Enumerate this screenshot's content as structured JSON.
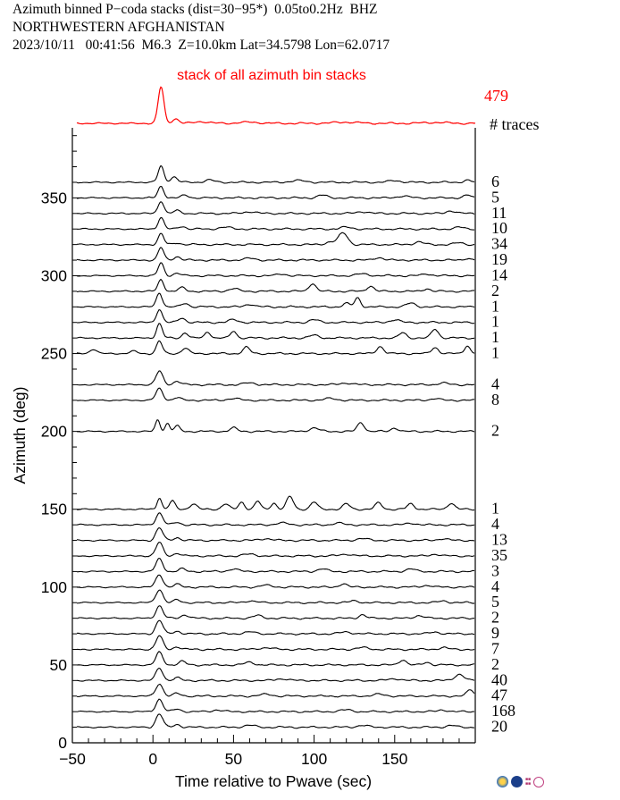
{
  "header": {
    "line1": "Azimuth binned P−coda stacks (dist=30−95*)  0.05to0.2Hz  BHZ",
    "line2": "NORTHWESTERN AFGHANISTAN",
    "line3": "2023/10/11   00:41:56  M6.3  Z=10.0km Lat=34.5798 Lon=62.0717"
  },
  "colors": {
    "stack": "#ff0000",
    "trace": "#000000",
    "axis": "#000000"
  },
  "chart_data": {
    "type": "line",
    "title": "Azimuth binned P−coda stacks (dist=30−95*)  0.05to0.2Hz  BHZ",
    "xlabel": "Time relative to Pwave (sec)",
    "ylabel": "Azimuth (deg)",
    "xlim": [
      -50,
      200
    ],
    "ylim": [
      0,
      395
    ],
    "xticks": [
      -50,
      0,
      50,
      100,
      150
    ],
    "xtick_labels": [
      "−50",
      "0",
      "50",
      "100",
      "150"
    ],
    "yticks": [
      0,
      50,
      100,
      150,
      200,
      250,
      300,
      350
    ],
    "yminor_step": 10,
    "xminor_step": 10,
    "grid": false,
    "stack": {
      "label": "stack of all azimuth bin stacks",
      "count_label": "479",
      "count_header": "# traces",
      "wiggles": [
        [
          5,
          12,
          2.5
        ],
        [
          14,
          1.5,
          3
        ],
        [
          30,
          0.6,
          6
        ],
        [
          60,
          0.4,
          8
        ],
        [
          120,
          0.4,
          10
        ],
        [
          175,
          0.3,
          10
        ]
      ]
    },
    "traces": [
      {
        "azimuth": 360,
        "count": "6",
        "wiggles": [
          [
            5,
            18,
            2.5
          ],
          [
            13,
            6,
            3
          ],
          [
            35,
            2.5,
            4
          ],
          [
            90,
            2,
            6
          ],
          [
            150,
            2,
            5
          ],
          [
            195,
            2.5,
            3
          ]
        ]
      },
      {
        "azimuth": 350,
        "count": "5",
        "wiggles": [
          [
            5,
            13,
            2.5
          ],
          [
            20,
            3,
            3
          ],
          [
            105,
            3,
            4
          ],
          [
            155,
            2,
            5
          ],
          [
            195,
            3,
            3
          ]
        ]
      },
      {
        "azimuth": 340,
        "count": "11",
        "wiggles": [
          [
            5,
            14,
            2.5
          ],
          [
            15,
            3,
            3
          ],
          [
            60,
            2,
            5
          ],
          [
            130,
            2,
            5
          ],
          [
            185,
            3,
            4
          ]
        ]
      },
      {
        "azimuth": 330,
        "count": "10",
        "wiggles": [
          [
            5,
            13,
            2.5
          ],
          [
            18,
            3,
            3
          ],
          [
            45,
            2,
            5
          ],
          [
            120,
            2,
            5
          ],
          [
            190,
            2,
            4
          ]
        ]
      },
      {
        "azimuth": 320,
        "count": "34",
        "wiggles": [
          [
            5,
            12,
            2.5
          ],
          [
            15,
            2,
            3
          ],
          [
            110,
            3,
            4
          ],
          [
            118,
            13,
            4
          ],
          [
            165,
            3,
            4
          ],
          [
            190,
            2,
            4
          ]
        ]
      },
      {
        "azimuth": 310,
        "count": "19",
        "wiggles": [
          [
            5,
            14,
            2.5
          ],
          [
            15,
            4,
            3
          ],
          [
            60,
            2,
            5
          ],
          [
            140,
            3,
            4
          ],
          [
            195,
            2,
            3
          ]
        ]
      },
      {
        "azimuth": 300,
        "count": "14",
        "wiggles": [
          [
            5,
            14,
            2.5
          ],
          [
            15,
            3,
            3
          ],
          [
            80,
            2,
            4
          ],
          [
            130,
            2,
            5
          ],
          [
            170,
            2,
            4
          ]
        ]
      },
      {
        "azimuth": 290,
        "count": "2",
        "wiggles": [
          [
            5,
            13,
            2.5
          ],
          [
            18,
            4,
            3
          ],
          [
            50,
            3,
            4
          ],
          [
            99,
            9,
            3
          ],
          [
            135,
            6,
            3
          ],
          [
            170,
            3,
            3
          ]
        ]
      },
      {
        "azimuth": 280,
        "count": "1",
        "wiggles": [
          [
            4,
            16,
            2.5
          ],
          [
            20,
            4,
            3
          ],
          [
            60,
            3,
            4
          ],
          [
            120,
            4,
            3
          ],
          [
            127,
            10,
            2.5
          ],
          [
            160,
            4,
            4
          ]
        ]
      },
      {
        "azimuth": 270,
        "count": "1",
        "wiggles": [
          [
            4,
            15,
            2.5
          ],
          [
            18,
            5,
            3
          ],
          [
            50,
            3,
            4
          ],
          [
            100,
            3,
            4
          ],
          [
            150,
            3,
            4
          ]
        ]
      },
      {
        "azimuth": 260,
        "count": "1",
        "wiggles": [
          [
            4,
            16,
            2.5
          ],
          [
            20,
            6,
            2.5
          ],
          [
            34,
            7,
            2.5
          ],
          [
            50,
            8,
            2.5
          ],
          [
            100,
            3,
            4
          ],
          [
            155,
            6,
            3
          ],
          [
            175,
            10,
            3
          ]
        ]
      },
      {
        "azimuth": 250,
        "count": "1",
        "wiggles": [
          [
            -37,
            7,
            3
          ],
          [
            -12,
            4,
            3
          ],
          [
            4,
            14,
            2.5
          ],
          [
            20,
            6,
            3
          ],
          [
            58,
            7,
            3
          ],
          [
            141,
            8,
            3
          ],
          [
            175,
            7,
            3
          ],
          [
            195,
            9,
            2.5
          ]
        ]
      },
      {
        "azimuth": 230,
        "count": "4",
        "wiggles": [
          [
            4,
            15,
            3
          ],
          [
            15,
            4,
            3
          ],
          [
            60,
            2,
            5
          ],
          [
            120,
            2,
            5
          ],
          [
            180,
            2,
            4
          ]
        ]
      },
      {
        "azimuth": 220,
        "count": "8",
        "wiggles": [
          [
            4,
            13,
            3
          ],
          [
            15,
            3,
            3
          ],
          [
            50,
            2,
            5
          ],
          [
            110,
            2,
            5
          ],
          [
            175,
            2,
            4
          ]
        ]
      },
      {
        "azimuth": 200,
        "count": "2",
        "wiggles": [
          [
            3,
            13,
            2
          ],
          [
            9,
            9,
            2
          ],
          [
            15,
            6,
            2.5
          ],
          [
            50,
            4,
            3
          ],
          [
            100,
            4,
            4
          ],
          [
            129,
            10,
            3
          ],
          [
            150,
            4,
            3
          ]
        ]
      },
      {
        "azimuth": 150,
        "count": "1",
        "wiggles": [
          [
            4,
            13,
            2
          ],
          [
            12,
            9,
            2.5
          ],
          [
            25,
            6,
            3
          ],
          [
            45,
            6,
            3
          ],
          [
            55,
            8,
            2.5
          ],
          [
            65,
            9,
            2.5
          ],
          [
            75,
            7,
            2.5
          ],
          [
            85,
            14,
            3
          ],
          [
            100,
            8,
            3
          ],
          [
            120,
            6,
            3
          ],
          [
            140,
            7,
            3
          ],
          [
            160,
            6,
            3
          ],
          [
            185,
            7,
            3
          ]
        ]
      },
      {
        "azimuth": 140,
        "count": "4",
        "wiggles": [
          [
            4,
            13,
            3
          ],
          [
            15,
            3,
            3
          ],
          [
            80,
            2,
            5
          ],
          [
            115,
            2,
            4
          ],
          [
            160,
            2,
            4
          ]
        ]
      },
      {
        "azimuth": 130,
        "count": "13",
        "wiggles": [
          [
            4,
            14,
            3
          ],
          [
            15,
            3,
            3
          ],
          [
            70,
            2,
            5
          ],
          [
            130,
            2,
            5
          ],
          [
            180,
            2,
            4
          ]
        ]
      },
      {
        "azimuth": 120,
        "count": "35",
        "wiggles": [
          [
            4,
            15,
            3
          ],
          [
            15,
            3,
            3
          ],
          [
            60,
            2,
            5
          ],
          [
            120,
            2,
            5
          ],
          [
            175,
            2,
            4
          ]
        ]
      },
      {
        "azimuth": 110,
        "count": "3",
        "wiggles": [
          [
            4,
            14,
            3
          ],
          [
            18,
            3,
            3
          ],
          [
            50,
            3,
            4
          ],
          [
            105,
            3,
            4
          ],
          [
            160,
            3,
            4
          ]
        ]
      },
      {
        "azimuth": 100,
        "count": "4",
        "wiggles": [
          [
            4,
            14,
            3
          ],
          [
            15,
            3,
            3
          ],
          [
            70,
            2,
            5
          ],
          [
            118,
            4,
            3
          ],
          [
            170,
            2,
            4
          ]
        ]
      },
      {
        "azimuth": 90,
        "count": "5",
        "wiggles": [
          [
            4,
            15,
            3
          ],
          [
            15,
            3,
            3
          ],
          [
            60,
            2,
            5
          ],
          [
            125,
            2,
            4
          ],
          [
            180,
            2,
            4
          ]
        ]
      },
      {
        "azimuth": 80,
        "count": "2",
        "wiggles": [
          [
            4,
            14,
            3
          ],
          [
            20,
            4,
            3
          ],
          [
            65,
            3,
            4
          ],
          [
            130,
            4,
            3
          ],
          [
            165,
            3,
            4
          ]
        ]
      },
      {
        "azimuth": 70,
        "count": "9",
        "wiggles": [
          [
            4,
            15,
            3
          ],
          [
            15,
            3,
            3
          ],
          [
            60,
            2,
            5
          ],
          [
            120,
            2,
            5
          ],
          [
            175,
            2,
            4
          ]
        ]
      },
      {
        "azimuth": 60,
        "count": "7",
        "wiggles": [
          [
            4,
            15,
            3
          ],
          [
            15,
            3,
            3
          ],
          [
            70,
            2,
            5
          ],
          [
            130,
            2,
            5
          ],
          [
            180,
            2,
            4
          ]
        ]
      },
      {
        "azimuth": 50,
        "count": "2",
        "wiggles": [
          [
            4,
            14,
            3
          ],
          [
            18,
            4,
            3
          ],
          [
            60,
            3,
            4
          ],
          [
            155,
            6,
            3
          ],
          [
            170,
            3,
            3
          ]
        ]
      },
      {
        "azimuth": 40,
        "count": "40",
        "wiggles": [
          [
            4,
            14,
            3
          ],
          [
            15,
            3,
            3
          ],
          [
            80,
            2,
            5
          ],
          [
            150,
            2,
            5
          ],
          [
            190,
            7,
            4
          ]
        ]
      },
      {
        "azimuth": 30,
        "count": "47",
        "wiggles": [
          [
            4,
            14,
            3
          ],
          [
            15,
            3,
            3
          ],
          [
            70,
            2,
            5
          ],
          [
            140,
            2,
            5
          ],
          [
            197,
            7,
            3
          ]
        ]
      },
      {
        "azimuth": 20,
        "count": "168",
        "wiggles": [
          [
            4,
            14,
            3
          ],
          [
            15,
            3,
            3
          ],
          [
            40,
            2,
            4
          ],
          [
            120,
            2,
            5
          ],
          [
            180,
            2,
            4
          ]
        ]
      },
      {
        "azimuth": 10,
        "count": "20",
        "wiggles": [
          [
            4,
            15,
            3
          ],
          [
            15,
            3,
            3
          ],
          [
            60,
            2,
            5
          ],
          [
            130,
            2,
            5
          ],
          [
            185,
            2,
            4
          ]
        ]
      }
    ]
  }
}
